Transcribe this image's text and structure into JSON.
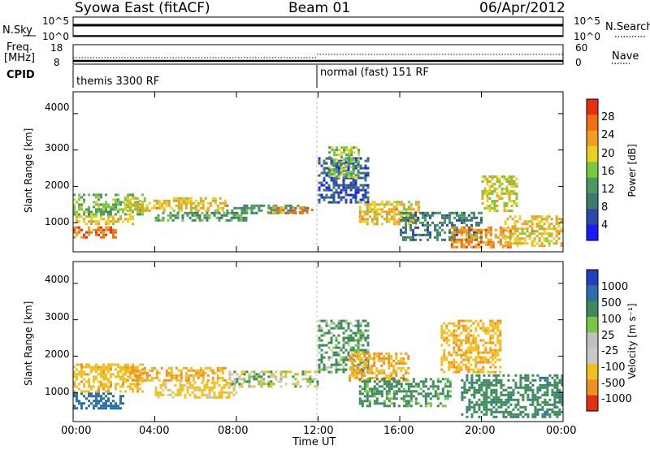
{
  "header": {
    "title": "Syowa East (fitACF)",
    "beam": "Beam 01",
    "date": "06/Apr/2012"
  },
  "panels": {
    "nsky_label": "N.Sky",
    "nsky_ticks": [
      "10^5",
      "10^0"
    ],
    "nsearch_label": "N.Search",
    "nsearch_ticks": [
      "10^5",
      "10^0"
    ],
    "freq_label": [
      "Freq.",
      "[MHz]"
    ],
    "freq_ticks": [
      "18",
      "8"
    ],
    "nave_label": "Nave",
    "nave_ticks": [
      "60",
      "0"
    ],
    "cpid_label": "CPID",
    "cpid_modes": [
      "themis 3300 RF",
      "normal (fast) 151 RF"
    ]
  },
  "colors": {
    "power_scale": [
      "#1a1aff",
      "#2a4aa8",
      "#3d7a70",
      "#4a9a60",
      "#7ac840",
      "#e8d020",
      "#f0a020",
      "#f07010",
      "#e83010"
    ],
    "velocity_scale": [
      "#2040c0",
      "#2a6fa8",
      "#3d8a5a",
      "#78c848",
      "#c0c0c0",
      "#c8c8c8",
      "#f0c020",
      "#f09020",
      "#e03010"
    ],
    "ground_scatter": "#bbbbbb"
  },
  "chart_data": [
    {
      "type": "heatmap",
      "panel": "power",
      "ylabel": "Slant Range [km]",
      "ylim": [
        200,
        4600
      ],
      "yticks": [
        "1000",
        "2000",
        "3000",
        "4000"
      ],
      "xlim": [
        "00:00",
        "00:00"
      ],
      "colorbar_label": "Power [dB]",
      "colorbar_ticks": [
        "28",
        "24",
        "20",
        "16",
        "12",
        "8",
        "4"
      ],
      "colorbar_range": [
        0,
        30
      ],
      "regions": [
        {
          "t0": 0.0,
          "t1": 2.2,
          "r0": 550,
          "r1": 900,
          "value": 27
        },
        {
          "t0": 0.0,
          "t1": 3.0,
          "r0": 900,
          "r1": 1200,
          "value": 21
        },
        {
          "t0": 0.0,
          "t1": 3.5,
          "r0": 1200,
          "r1": 1800,
          "value": 16
        },
        {
          "t0": 2.5,
          "t1": 7.5,
          "r0": 1300,
          "r1": 1700,
          "value": 22
        },
        {
          "t0": 4.0,
          "t1": 8.5,
          "r0": 1000,
          "r1": 1300,
          "value": 14
        },
        {
          "t0": 7.5,
          "t1": 11.5,
          "r0": 1200,
          "r1": 1500,
          "value": 13
        },
        {
          "t0": 9.5,
          "t1": 11.8,
          "r0": 1250,
          "r1": 1450,
          "value": 25
        },
        {
          "t0": 12.0,
          "t1": 14.5,
          "r0": 1500,
          "r1": 2800,
          "value": 8
        },
        {
          "t0": 12.5,
          "t1": 14.0,
          "r0": 2200,
          "r1": 3100,
          "value": 17
        },
        {
          "t0": 14.0,
          "t1": 17.0,
          "r0": 900,
          "r1": 1600,
          "value": 22
        },
        {
          "t0": 16.0,
          "t1": 20.0,
          "r0": 500,
          "r1": 1300,
          "value": 11
        },
        {
          "t0": 18.5,
          "t1": 21.5,
          "r0": 300,
          "r1": 900,
          "value": 26
        },
        {
          "t0": 20.0,
          "t1": 21.8,
          "r0": 1300,
          "r1": 2300,
          "value": 20
        },
        {
          "t0": 21.0,
          "t1": 24.0,
          "r0": 300,
          "r1": 1200,
          "value": 22
        }
      ]
    },
    {
      "type": "heatmap",
      "panel": "velocity",
      "xlabel": "Time UT",
      "ylabel": "Slant Range [km]",
      "ylim": [
        200,
        4600
      ],
      "yticks": [
        "1000",
        "2000",
        "3000",
        "4000"
      ],
      "xlim": [
        "00:00",
        "00:00"
      ],
      "xticks": [
        "00:00",
        "04:00",
        "08:00",
        "12:00",
        "16:00",
        "20:00",
        "00:00"
      ],
      "colorbar_label": "Velocity [m s⁻¹]",
      "colorbar_ticks": [
        "1000",
        "500",
        "100",
        "25",
        "-25",
        "-100",
        "-500",
        "-1000"
      ],
      "regions": [
        {
          "t0": 0.0,
          "t1": 2.5,
          "r0": 550,
          "r1": 1000,
          "value": 500
        },
        {
          "t0": 0.0,
          "t1": 3.5,
          "r0": 1000,
          "r1": 1800,
          "value": -200
        },
        {
          "t0": 2.5,
          "t1": 7.5,
          "r0": 1300,
          "r1": 1700,
          "value": -300
        },
        {
          "t0": 4.0,
          "t1": 8.0,
          "r0": 800,
          "r1": 1300,
          "value": -150
        },
        {
          "t0": 7.5,
          "t1": 12.0,
          "r0": 1100,
          "r1": 1600,
          "value": 0
        },
        {
          "t0": 12.0,
          "t1": 14.5,
          "r0": 1500,
          "r1": 3000,
          "value": 100
        },
        {
          "t0": 13.5,
          "t1": 16.5,
          "r0": 1300,
          "r1": 2100,
          "value": -300
        },
        {
          "t0": 14.0,
          "t1": 18.5,
          "r0": 600,
          "r1": 1400,
          "value": 150
        },
        {
          "t0": 18.0,
          "t1": 21.0,
          "r0": 1500,
          "r1": 3000,
          "value": -250
        },
        {
          "t0": 19.0,
          "t1": 24.0,
          "r0": 300,
          "r1": 1500,
          "value": 200
        }
      ]
    }
  ]
}
